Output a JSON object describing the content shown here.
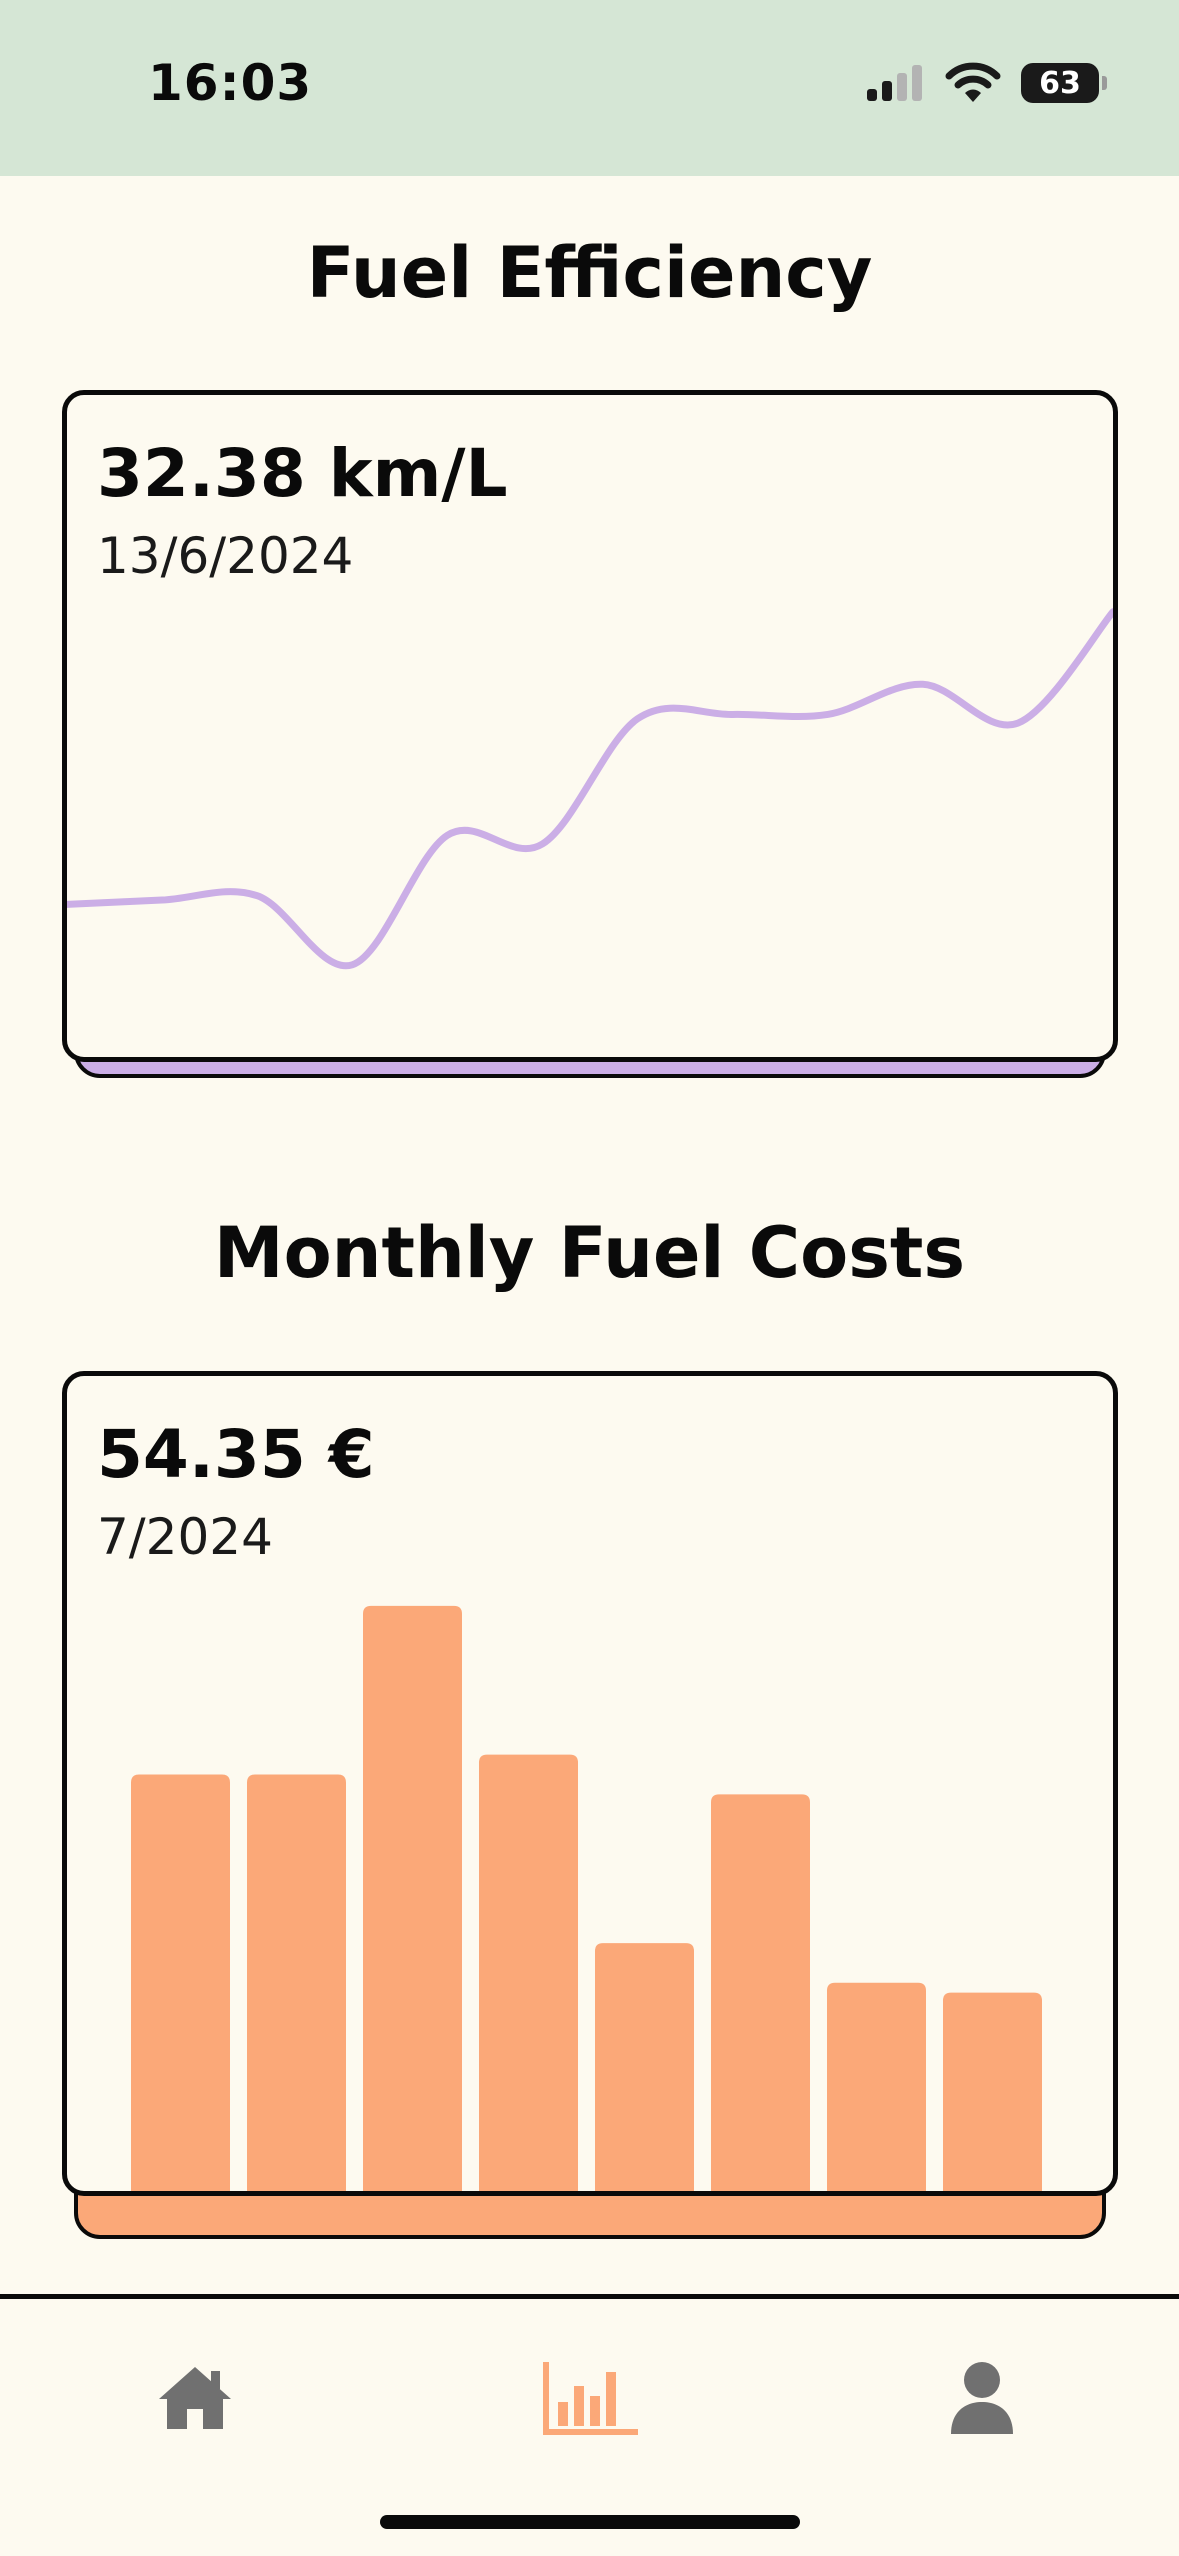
{
  "status_bar": {
    "time": "16:03",
    "battery": "63"
  },
  "fuel_efficiency": {
    "title": "Fuel Efficiency",
    "value": "32.38 km/L",
    "date": "13/6/2024",
    "line_color": "#cbaee6",
    "chart_data": {
      "type": "line",
      "title": "",
      "x": [
        1,
        2,
        3,
        4,
        5,
        6,
        7,
        8,
        9,
        10,
        11,
        12
      ],
      "values": [
        25.6,
        25.7,
        25.8,
        24.2,
        27.2,
        27.0,
        29.9,
        30.0,
        30.0,
        30.7,
        29.8,
        32.38
      ]
    }
  },
  "monthly_costs": {
    "title": "Monthly Fuel Costs",
    "value": "54.35 €",
    "date": "7/2024",
    "bar_color": "#fba878",
    "chart_data": {
      "type": "bar",
      "title": "",
      "categories": [
        "1",
        "2",
        "3",
        "4",
        "5",
        "6",
        "7",
        "8"
      ],
      "values": [
        42,
        42,
        59,
        44,
        25,
        40,
        21,
        20
      ]
    }
  },
  "nav": {
    "active_color": "#fba878",
    "inactive_color": "#707070",
    "items": [
      {
        "icon": "home-icon"
      },
      {
        "icon": "chart-icon"
      },
      {
        "icon": "user-icon"
      }
    ]
  }
}
